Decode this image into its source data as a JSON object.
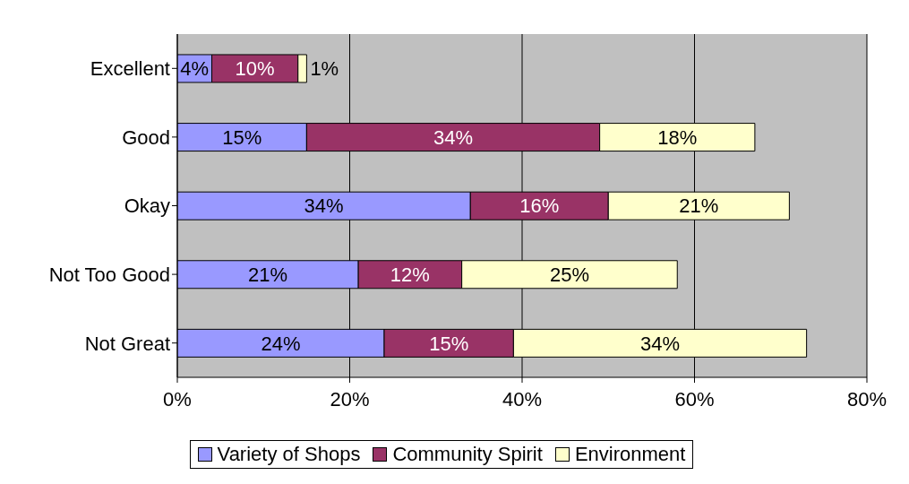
{
  "chart_data": {
    "type": "bar",
    "orientation": "horizontal",
    "stacked": true,
    "categories": [
      "Excellent",
      "Good",
      "Okay",
      "Not Too Good",
      "Not Great"
    ],
    "series": [
      {
        "name": "Variety of Shops",
        "color": "#9999ff",
        "values": [
          4,
          15,
          34,
          21,
          24
        ],
        "value_labels": [
          "4%",
          "15%",
          "34%",
          "21%",
          "24%"
        ]
      },
      {
        "name": "Community Spirit",
        "color": "#993366",
        "values": [
          10,
          34,
          16,
          12,
          15
        ],
        "value_labels": [
          "10%",
          "34%",
          "16%",
          "12%",
          "15%"
        ]
      },
      {
        "name": "Environment",
        "color": "#ffffcc",
        "values": [
          1,
          18,
          21,
          25,
          34
        ],
        "value_labels": [
          "1%",
          "18%",
          "21%",
          "25%",
          "34%"
        ]
      }
    ],
    "xlim": [
      0,
      80
    ],
    "xticks": [
      {
        "value": 0,
        "label": "0%"
      },
      {
        "value": 20,
        "label": "20%"
      },
      {
        "value": 40,
        "label": "40%"
      },
      {
        "value": 60,
        "label": "60%"
      },
      {
        "value": 80,
        "label": "80%"
      }
    ],
    "grid": "x",
    "legend": "bottom"
  }
}
